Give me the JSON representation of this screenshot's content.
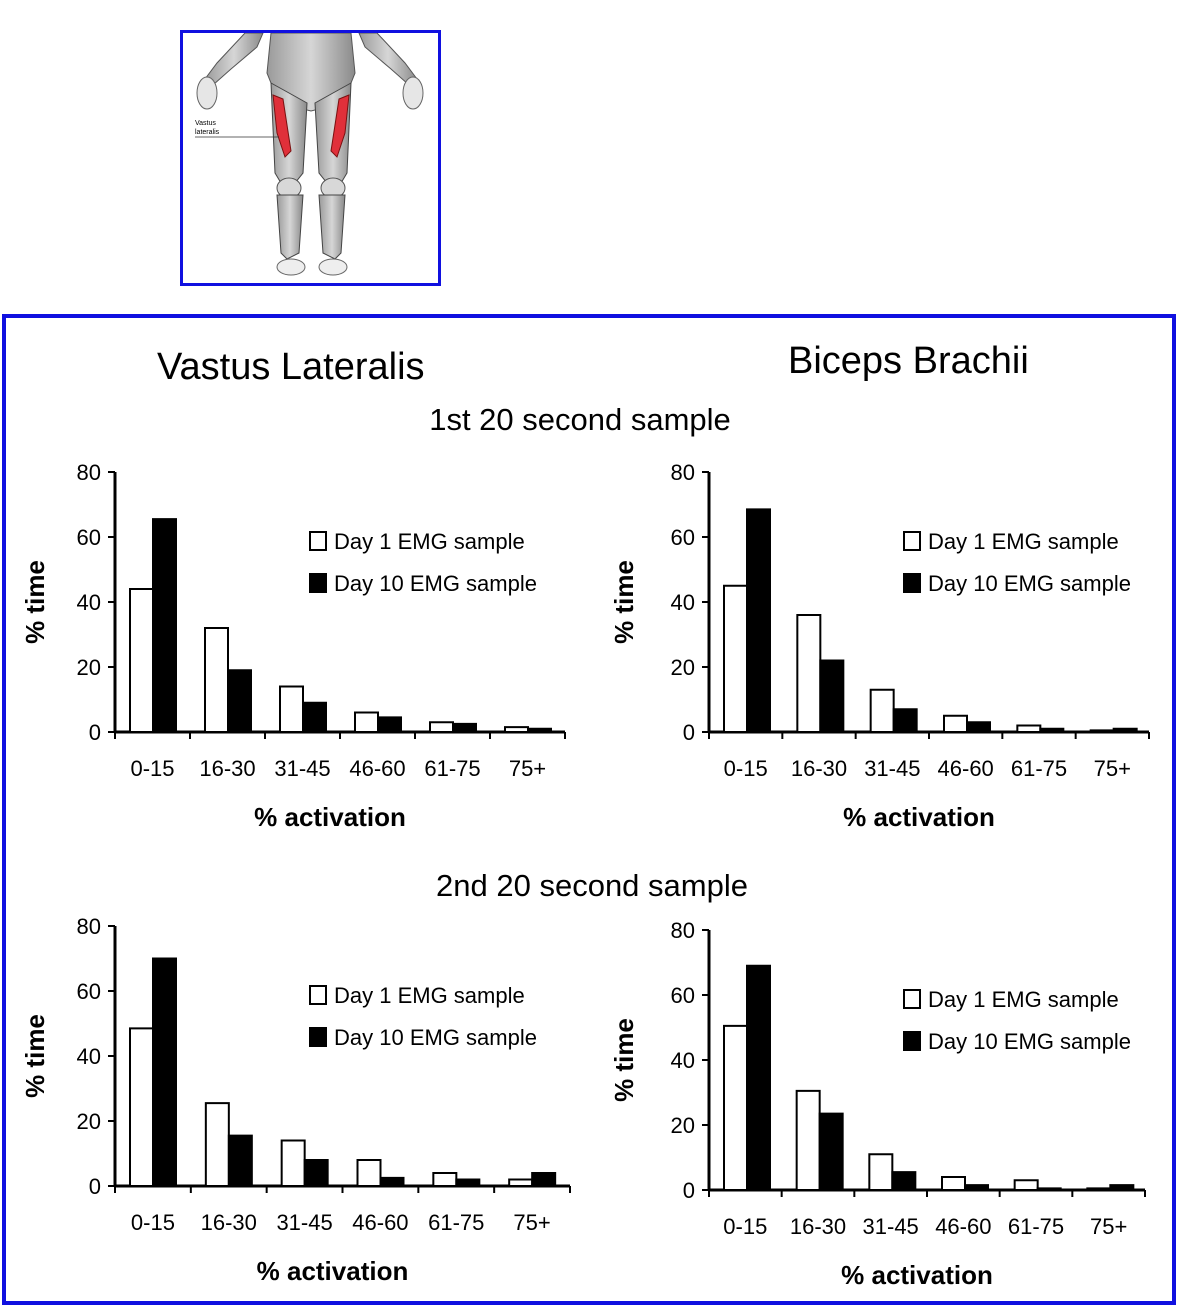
{
  "figure": {
    "col_titles": [
      "Vastus Lateralis",
      "Biceps Brachii"
    ],
    "sample_titles": [
      "1st 20 second sample",
      "2nd 20 second sample"
    ],
    "anatomy_label": [
      "Vastus",
      "lateralis"
    ],
    "colors": {
      "border": "#1010e0",
      "muscle_highlight": "#e0303a",
      "day1_fill": "#ffffff",
      "day10_fill": "#000000"
    }
  },
  "chart_data": [
    {
      "type": "bar",
      "categories": [
        "0-15",
        "16-30",
        "31-45",
        "46-60",
        "61-75",
        "75+"
      ],
      "series": [
        {
          "name": "Day 1 EMG sample",
          "values": [
            44,
            32,
            14,
            6,
            3,
            1.5
          ]
        },
        {
          "name": "Day 10 EMG sample",
          "values": [
            65.5,
            19,
            9,
            4.5,
            2.5,
            1
          ]
        }
      ],
      "xlabel": "% activation",
      "ylabel": "% time",
      "ylim": [
        0,
        80
      ],
      "yticks": [
        0,
        20,
        40,
        60,
        80
      ],
      "legend": "top-right",
      "grid": false
    },
    {
      "type": "bar",
      "categories": [
        "0-15",
        "16-30",
        "31-45",
        "46-60",
        "61-75",
        "75+"
      ],
      "series": [
        {
          "name": "Day 1 EMG sample",
          "values": [
            45,
            36,
            13,
            5,
            2,
            0.5
          ]
        },
        {
          "name": "Day 10 EMG sample",
          "values": [
            68.5,
            22,
            7,
            3,
            1,
            1
          ]
        }
      ],
      "xlabel": "% activation",
      "ylabel": "% time",
      "ylim": [
        0,
        80
      ],
      "yticks": [
        0,
        20,
        40,
        60,
        80
      ],
      "legend": "top-right",
      "grid": false
    },
    {
      "type": "bar",
      "categories": [
        "0-15",
        "16-30",
        "31-45",
        "46-60",
        "61-75",
        "75+"
      ],
      "series": [
        {
          "name": "Day 1 EMG sample",
          "values": [
            48.5,
            25.5,
            14,
            8,
            4,
            2
          ]
        },
        {
          "name": "Day 10 EMG sample",
          "values": [
            70,
            15.5,
            8,
            2.5,
            2,
            4
          ]
        }
      ],
      "xlabel": "% activation",
      "ylabel": "% time",
      "ylim": [
        0,
        80
      ],
      "yticks": [
        0,
        20,
        40,
        60,
        80
      ],
      "legend": "top-right",
      "grid": false
    },
    {
      "type": "bar",
      "categories": [
        "0-15",
        "16-30",
        "31-45",
        "46-60",
        "61-75",
        "75+"
      ],
      "series": [
        {
          "name": "Day 1 EMG sample",
          "values": [
            50.5,
            30.5,
            11,
            4,
            3,
            0.5
          ]
        },
        {
          "name": "Day 10 EMG sample",
          "values": [
            69,
            23.5,
            5.5,
            1.5,
            0.5,
            1.5
          ]
        }
      ],
      "xlabel": "% activation",
      "ylabel": "% time",
      "ylim": [
        0,
        80
      ],
      "yticks": [
        0,
        20,
        40,
        60,
        80
      ],
      "legend": "top-right",
      "grid": false
    }
  ]
}
